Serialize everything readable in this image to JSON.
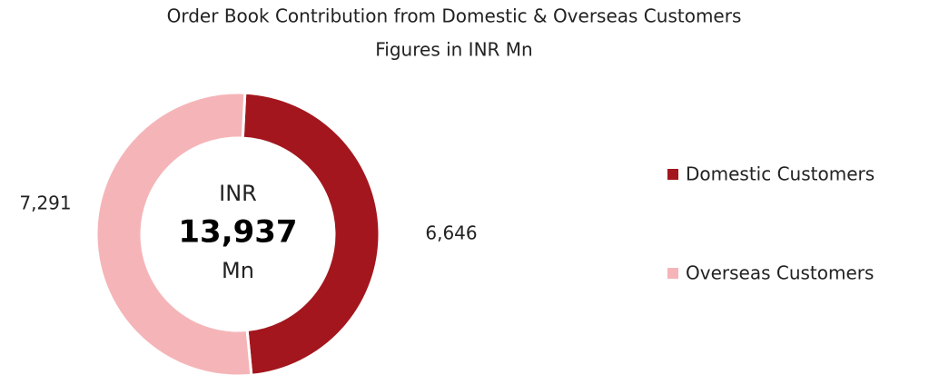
{
  "chart_data": {
    "type": "donut",
    "title": "Order Book Contribution from Domestic & Overseas Customers",
    "subtitle": "Figures in INR Mn",
    "categories": [
      "Domestic Customers",
      "Overseas Customers"
    ],
    "values": [
      6646,
      7291
    ],
    "value_labels": [
      "6,646",
      "7,291"
    ],
    "colors": [
      "#a3161d",
      "#f5b5b8"
    ],
    "center_text": [
      "INR",
      "13,937",
      "Mn"
    ],
    "legend": "right"
  }
}
